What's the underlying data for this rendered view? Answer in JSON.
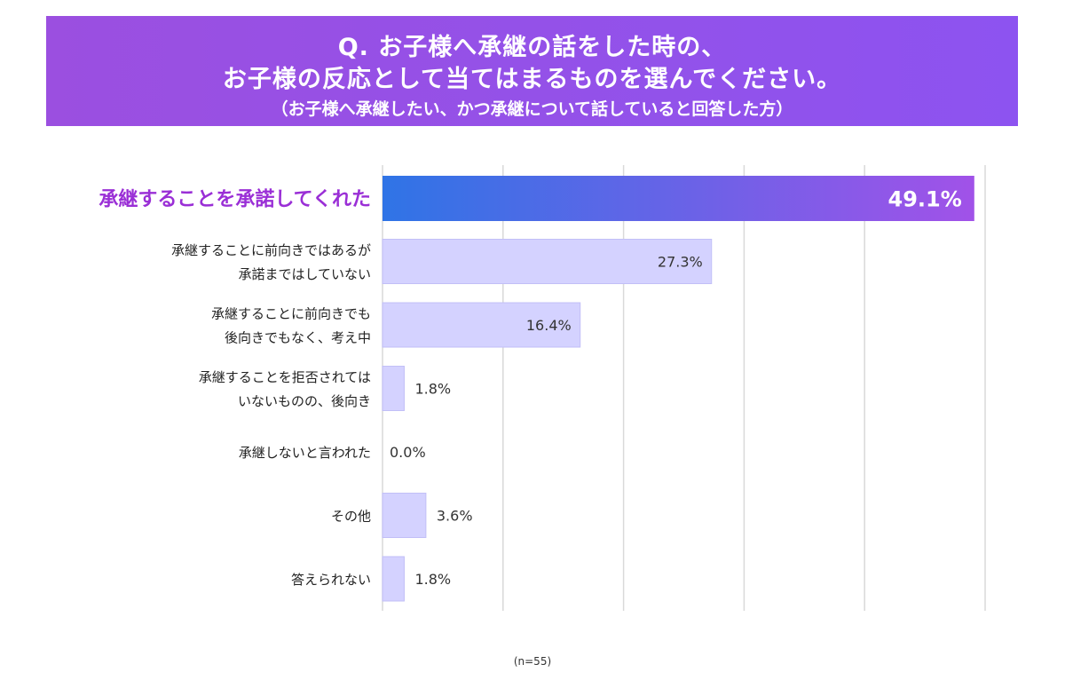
{
  "header": {
    "line1": "Q. お子様へ承継の話をした時の、",
    "line2": "お子様の反応として当てはまるものを選んでください。",
    "line3": "（お子様へ承継したい、かつ承継について話していると回答した方）"
  },
  "chart_data": {
    "type": "bar",
    "orientation": "horizontal",
    "unit": "%",
    "categories": [
      [
        "承継することを承諾してくれた"
      ],
      [
        "承継することに前向きではあるが",
        "承諾まではしていない"
      ],
      [
        "承継することに前向きでも",
        "後向きでもなく、考え中"
      ],
      [
        "承継することを拒否されては",
        "いないものの、後向き"
      ],
      [
        "承継しないと言われた"
      ],
      [
        "その他"
      ],
      [
        "答えられない"
      ]
    ],
    "values": [
      49.1,
      27.3,
      16.4,
      1.8,
      0.0,
      3.6,
      1.8
    ],
    "value_labels": [
      "49.1%",
      "27.3%",
      "16.4%",
      "1.8%",
      "0.0%",
      "3.6%",
      "1.8%"
    ],
    "xlim": [
      0,
      50
    ],
    "grid": true,
    "highlight_index": 0,
    "colors": {
      "highlight_start": "#2f74e6",
      "highlight_end": "#a152e8",
      "highlight_label": "#9a2fd6",
      "bar": "#d4d2ff",
      "bar_border": "#c2bff7",
      "grid": "#d9d9d9"
    }
  },
  "footnote": "(n=55)"
}
